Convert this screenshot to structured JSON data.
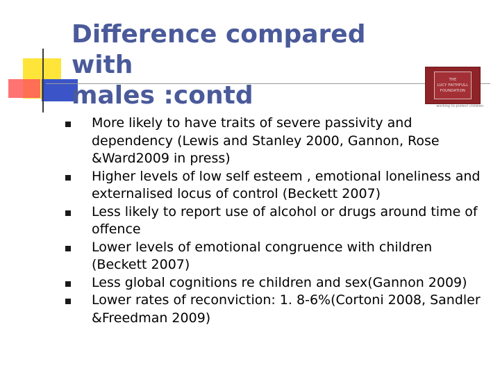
{
  "slide": {
    "title_lines": [
      "Difference compared with",
      "males :contd"
    ],
    "logo": {
      "lines": [
        "THE",
        "LUCY FAITHFULL",
        "FOUNDATION"
      ],
      "tagline": "working to protect children",
      "colors": {
        "background": "#8e2328",
        "text": "#f4e6e6"
      }
    },
    "bullets": [
      "More likely to have traits of severe passivity and dependency  (Lewis and Stanley 2000, Gannon, Rose &Ward2009 in press)",
      "Higher levels of low self esteem , emotional loneliness and externalised locus of control (Beckett 2007)",
      "Less likely to report use of alcohol or drugs around time of offence",
      "Lower levels of emotional congruence with children (Beckett 2007)",
      "Less global cognitions re children and sex(Gannon 2009)",
      "Lower rates of reconviction: 1. 8-6%(Cortoni 2008, Sandler &Freedman 2009)"
    ],
    "colors": {
      "title": "#4a5a9a",
      "accent_yellow": "#ffe43a",
      "accent_red": "#ff5a5a",
      "accent_blue": "#3b55c8"
    }
  }
}
